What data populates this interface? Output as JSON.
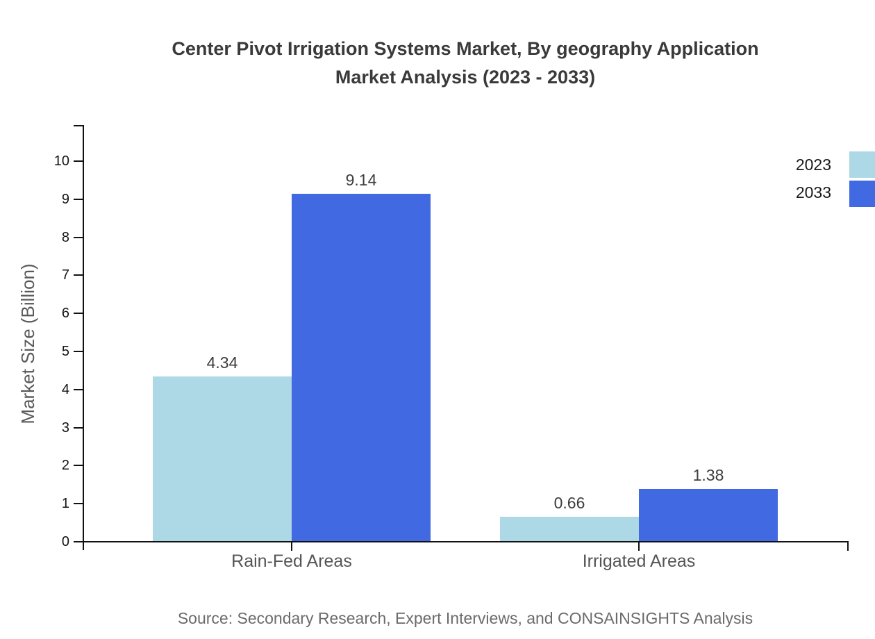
{
  "chart_data": {
    "type": "bar",
    "title": "Center Pivot Irrigation Systems Market, By geography Application Market Analysis (2023 - 2033)",
    "title_lines": [
      "Center Pivot Irrigation Systems Market, By geography Application",
      "Market Analysis (2023 - 2033)"
    ],
    "categories": [
      "Rain-Fed Areas",
      "Irrigated Areas"
    ],
    "series": [
      {
        "name": "2023",
        "color": "#ADD8E6",
        "values": [
          4.34,
          0.66
        ]
      },
      {
        "name": "2033",
        "color": "#4169E1",
        "values": [
          9.14,
          1.38
        ]
      }
    ],
    "value_labels": [
      [
        "4.34",
        "0.66"
      ],
      [
        "9.14",
        "1.38"
      ]
    ],
    "xlabel": "",
    "ylabel": "Market Size (Billion)",
    "ylim": [
      0,
      10
    ],
    "yticks": [
      0,
      1,
      2,
      3,
      4,
      5,
      6,
      7,
      8,
      9,
      10
    ],
    "grid": false,
    "legend_position": "top-right",
    "axis_color": "#111111",
    "source": "Source: Secondary Research, Expert Interviews, and CONSAINSIGHTS Analysis"
  }
}
